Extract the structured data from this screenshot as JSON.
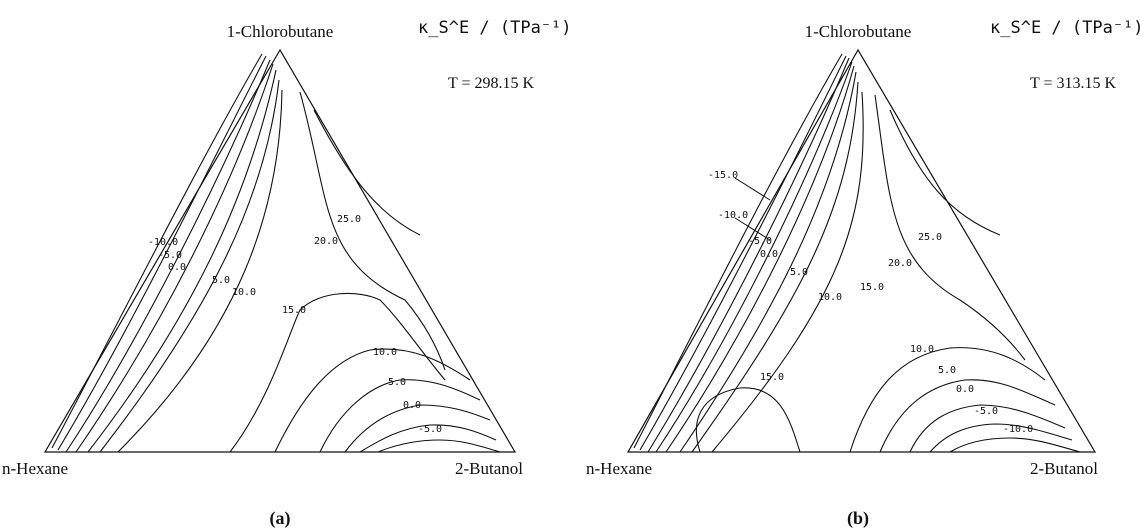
{
  "panels": [
    {
      "top_label": "1-Chlorobutane",
      "left_label": "n-Hexane",
      "right_label": "2-Butanol",
      "quantity": "κ_S^E / (TPa⁻¹)",
      "temperature": "T = 298.15 K",
      "caption": "(a)",
      "contour_labels": [
        "-10.0",
        "-5.0",
        "0.0",
        "5.0",
        "10.0",
        "15.0",
        "20.0",
        "25.0",
        "10.0",
        "5.0",
        "0.0",
        "-5.0"
      ]
    },
    {
      "top_label": "1-Chlorobutane",
      "left_label": "n-Hexane",
      "right_label": "2-Butanol",
      "quantity": "κ_S^E / (TPa⁻¹)",
      "temperature": "T = 313.15 K",
      "caption": "(b)",
      "contour_labels": [
        "-15.0",
        "-10.0",
        "-5.0",
        "0.0",
        "5.0",
        "10.0",
        "15.0",
        "20.0",
        "25.0",
        "10.0",
        "5.0",
        "0.0",
        "-5.0",
        "-10.0",
        "15.0"
      ]
    }
  ]
}
